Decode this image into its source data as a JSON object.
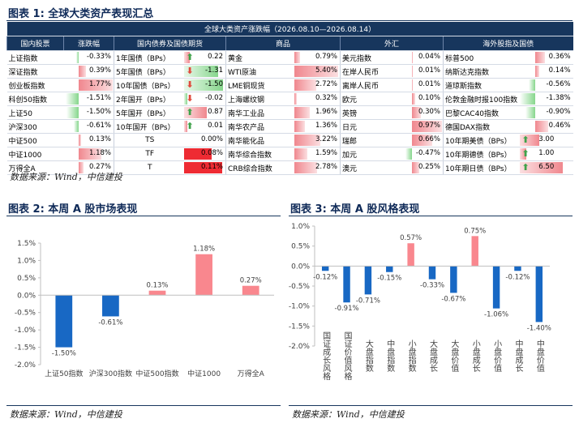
{
  "fig1": {
    "title": "图表 1: 全球大类资产表现汇总",
    "banner": "全球大类资产涨跌幅（2026.08.10—2026.08.14）",
    "headers": [
      "国内股票",
      "涨跌幅",
      "国内债券及国债期货",
      "商品",
      "外汇",
      "海外股指及国债"
    ],
    "source": "数据来源：Wind，中信建投",
    "stocks": [
      {
        "name": "上证指数",
        "value": "-0.33%",
        "num": -0.33
      },
      {
        "name": "深证指数",
        "value": "0.39%",
        "num": 0.39
      },
      {
        "name": "创业板指数",
        "value": "1.77%",
        "num": 1.77
      },
      {
        "name": "科创50指数",
        "value": "-1.51%",
        "num": -1.51
      },
      {
        "name": "上证50",
        "value": "-1.50%",
        "num": -1.5
      },
      {
        "name": "沪深300",
        "value": "-0.61%",
        "num": -0.61
      },
      {
        "name": "中证500",
        "value": "0.13%",
        "num": 0.13
      },
      {
        "name": "中证1000",
        "value": "1.18%",
        "num": 1.18
      },
      {
        "name": "万得全A",
        "value": "0.27%",
        "num": 0.27
      }
    ],
    "bonds": [
      {
        "name": "1年国债（BPs）",
        "value": "0.22",
        "num": 0.22,
        "arrow": "up"
      },
      {
        "name": "5年国债（BPs）",
        "value": "-1.31",
        "num": -1.31,
        "arrow": "down"
      },
      {
        "name": "10年国债（BPs）",
        "value": "-1.50",
        "num": -1.5,
        "arrow": "down"
      },
      {
        "name": "2年国开（BPs）",
        "value": "-0.02",
        "num": -0.02,
        "arrow": "down"
      },
      {
        "name": "5年国开（BPs）",
        "value": "0.87",
        "num": 0.87,
        "arrow": "up"
      },
      {
        "name": "10年国开（BPs）",
        "value": "0.01",
        "num": 0.01,
        "arrow": "up"
      },
      {
        "name": "TS",
        "value": "0.00%",
        "num": 0.0,
        "arrow": ""
      },
      {
        "name": "TF",
        "value": "0.08%",
        "num": 0.08,
        "arrow": ""
      },
      {
        "name": "T",
        "value": "0.11%",
        "num": 0.11,
        "arrow": ""
      }
    ],
    "commodities": [
      {
        "name": "黄金",
        "value": "0.79%",
        "num": 0.79
      },
      {
        "name": "WTI原油",
        "value": "5.40%",
        "num": 5.4
      },
      {
        "name": "LME铜现货",
        "value": "2.72%",
        "num": 2.72
      },
      {
        "name": "上海螺纹钢",
        "value": "0.32%",
        "num": 0.32
      },
      {
        "name": "南华工业品",
        "value": "1.96%",
        "num": 1.96
      },
      {
        "name": "南华农产品",
        "value": "1.36%",
        "num": 1.36
      },
      {
        "name": "南华能化品",
        "value": "3.22%",
        "num": 3.22
      },
      {
        "name": "南华综合指数",
        "value": "1.59%",
        "num": 1.59
      },
      {
        "name": "CRB综合指数",
        "value": "2.78%",
        "num": 2.78
      }
    ],
    "fx": [
      {
        "name": "美元指数",
        "value": "0.04%",
        "num": 0.04
      },
      {
        "name": "在岸人民币",
        "value": "0.01%",
        "num": 0.01
      },
      {
        "name": "离岸人民币",
        "value": "0.01%",
        "num": 0.01
      },
      {
        "name": "欧元",
        "value": "0.10%",
        "num": 0.1
      },
      {
        "name": "英镑",
        "value": "0.30%",
        "num": 0.3
      },
      {
        "name": "日元",
        "value": "0.97%",
        "num": 0.97
      },
      {
        "name": "瑞郎",
        "value": "0.66%",
        "num": 0.66
      },
      {
        "name": "加元",
        "value": "-0.47%",
        "num": -0.47
      },
      {
        "name": "澳元",
        "value": "0.25%",
        "num": 0.25
      }
    ],
    "overseas": [
      {
        "name": "标普500",
        "value": "0.36%",
        "num": 0.36,
        "arrow": ""
      },
      {
        "name": "纳斯达克指数",
        "value": "0.14%",
        "num": 0.14,
        "arrow": ""
      },
      {
        "name": "道琼斯指数",
        "value": "-0.56%",
        "num": -0.56,
        "arrow": ""
      },
      {
        "name": "伦敦金融时报100指数",
        "value": "-1.38%",
        "num": -1.38,
        "arrow": ""
      },
      {
        "name": "巴黎CAC40指数",
        "value": "-0.90%",
        "num": -0.9,
        "arrow": ""
      },
      {
        "name": "德国DAX指数",
        "value": "0.46%",
        "num": 0.46,
        "arrow": ""
      },
      {
        "name": "10年期美债（BPs）",
        "value": "3.00",
        "num": 3.0,
        "arrow": "up"
      },
      {
        "name": "10年期德债（BPs）",
        "value": "1.00",
        "num": 1.0,
        "arrow": "up"
      },
      {
        "name": "10年期日债（BPs）",
        "value": "6.50",
        "num": 6.5,
        "arrow": "up"
      }
    ]
  },
  "fig2": {
    "title": "图表 2: 本周 A 股市场表现",
    "source": "数据来源：Wind，中信建投"
  },
  "fig3": {
    "title": "图表 3: 本周 A 股风格表现",
    "source": "数据来源：Wind，中信建投"
  },
  "colors": {
    "positive": "#f9878e",
    "negative": "#1868c4",
    "header": "#17365d",
    "up_arrow": "#3fa24a",
    "down_arrow": "#e04b3d"
  },
  "chart_data": [
    {
      "type": "bar",
      "title": "图表 2: 本周 A 股市场表现",
      "categories": [
        "上证50指数",
        "沪深300指数",
        "中证500指数",
        "中证1000",
        "万得全A"
      ],
      "values": [
        -1.5,
        -0.61,
        0.13,
        1.18,
        0.27
      ],
      "labels": [
        "-1.50%",
        "-0.61%",
        "0.13%",
        "1.18%",
        "0.27%"
      ],
      "ylim": [
        -2.0,
        1.5
      ],
      "yticks": [
        -2.0,
        -1.5,
        -1.0,
        -0.5,
        0.0,
        0.5,
        1.0,
        1.5
      ],
      "ytick_labels": [
        "-2.0%",
        "-1.5%",
        "-1.0%",
        "-0.5%",
        "0.0%",
        "0.5%",
        "1.0%",
        "1.5%"
      ],
      "grid": false
    },
    {
      "type": "bar",
      "title": "图表 3: 本周 A 股风格表现",
      "categories": [
        "国证成长风格",
        "国证价值风格",
        "大盘指数",
        "中盘指数",
        "小盘指数",
        "大盘成长",
        "大盘价值",
        "小盘成长",
        "小盘价值",
        "中盘成长",
        "中盘价值"
      ],
      "values": [
        -0.12,
        -0.91,
        -0.71,
        -0.15,
        0.57,
        -0.33,
        -0.67,
        0.75,
        -1.06,
        -0.12,
        -1.4
      ],
      "labels": [
        "-0.12%",
        "-0.91%",
        "-0.71%",
        "-0.15%",
        "0.57%",
        "-0.33%",
        "-0.67%",
        "0.75%",
        "-1.06%",
        "-0.12%",
        "-1.40%"
      ],
      "ylim": [
        -2.0,
        1.0
      ],
      "yticks": [
        -2.0,
        -1.5,
        -1.0,
        -0.5,
        0.0,
        0.5,
        1.0
      ],
      "ytick_labels": [
        "-2.0%",
        "-1.5%",
        "-1.0%",
        "-0.5%",
        "0.0%",
        "0.5%",
        "1.0%"
      ],
      "grid": false
    }
  ]
}
